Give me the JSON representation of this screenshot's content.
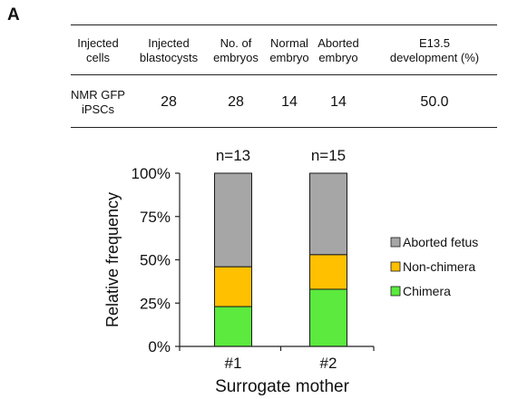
{
  "panel_label": "A",
  "table": {
    "headers": [
      [
        "Injected",
        "cells"
      ],
      [
        "Injected",
        "blastocysts"
      ],
      [
        "No. of",
        "embryos"
      ],
      [
        "Normal",
        "embryo"
      ],
      [
        "Aborted",
        "embryo"
      ],
      [
        "E13.5",
        "development  (%)"
      ]
    ],
    "row_label": [
      "NMR GFP",
      "iPSCs"
    ],
    "row_values": [
      "28",
      "28",
      "14",
      "14",
      "50.0"
    ]
  },
  "chart_data": {
    "type": "bar",
    "stacked": true,
    "categories": [
      "#1",
      "#2"
    ],
    "annotations": [
      "n=13",
      "n=15"
    ],
    "series": [
      {
        "name": "Chimera",
        "color": "#5bea3d",
        "values": [
          0.23,
          0.33
        ]
      },
      {
        "name": "Non-chimera",
        "color": "#ffc000",
        "values": [
          0.23,
          0.2
        ]
      },
      {
        "name": "Aborted fetus",
        "color": "#a6a6a6",
        "values": [
          0.54,
          0.47
        ]
      }
    ],
    "legend_order": [
      "Aborted fetus",
      "Non-chimera",
      "Chimera"
    ],
    "xlabel": "Surrogate mother",
    "ylabel": "Relative frequency",
    "ylim": [
      0,
      1
    ],
    "yticks": [
      "0%",
      "25%",
      "50%",
      "75%",
      "100%"
    ],
    "grid": false,
    "legend_position": "right"
  }
}
